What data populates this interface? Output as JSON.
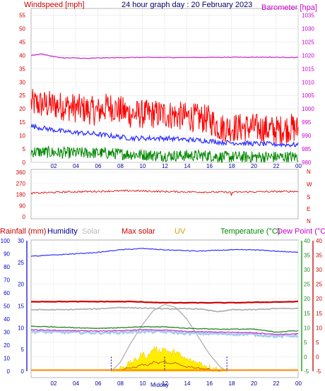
{
  "header": {
    "left_title": "Windspeed [mph]",
    "center_title": "24 hour graph day : 20 February 2023",
    "right_title": "Barometer [hpa]"
  },
  "colors": {
    "wind_axis": "#cc0000",
    "baro_axis": "#cc00cc",
    "gust": "#ff0000",
    "avg_wind": "#3333ff",
    "min_wind": "#008800",
    "barometer": "#cc33cc",
    "direction": "#dd2222",
    "rain_axis": "#0000cc",
    "humidity": "#3333ff",
    "solar": "#aaaaaa",
    "max_solar": "#aaaaaa",
    "uv": "#ddaa00",
    "temperature": "#228822",
    "dew_point": "#cc33cc",
    "temp_axis": "#cc0000",
    "outdoor_light": "#aaccee",
    "solar_fill": "#ffee00"
  },
  "legend2": {
    "rainfall": "Rainfall (mm)",
    "humidity": "Humidity",
    "solar": "Solar",
    "max_solar": "Max solar",
    "uv": "UV",
    "temperature": "Temperature (°C)",
    "dew_point": "Dew Point (°C)"
  },
  "midday_label": "Midday",
  "chart_data": [
    {
      "type": "line",
      "name": "wind-barometer",
      "x_ticks": [
        "02",
        "04",
        "06",
        "08",
        "10",
        "12",
        "14",
        "16",
        "18",
        "20",
        "22",
        "00"
      ],
      "y_left_ticks": [
        0,
        5,
        10,
        15,
        20,
        25,
        30,
        35,
        40,
        45,
        50,
        55
      ],
      "y_left_range": [
        0,
        57.5
      ],
      "y_right_ticks": [
        980,
        985,
        990,
        995,
        1000,
        1005,
        1010,
        1015,
        1020,
        1025,
        1030,
        1035
      ],
      "y_right_range": [
        980,
        1037.5
      ],
      "gust_profile": {
        "x": [
          0,
          3,
          6,
          7,
          9,
          12,
          16,
          17,
          20,
          22,
          23.5,
          24
        ],
        "y": [
          22,
          21,
          19,
          21,
          18,
          18,
          16,
          13,
          13,
          12,
          13,
          12
        ]
      },
      "avg_profile": {
        "x": [
          0,
          3,
          6,
          9,
          12,
          16,
          17,
          20,
          24
        ],
        "y": [
          13.5,
          11.5,
          10.5,
          9,
          9,
          8,
          7.5,
          7,
          6.5
        ]
      },
      "min_profile": {
        "x": [
          0,
          3,
          6,
          9,
          12,
          16,
          17,
          20,
          24
        ],
        "y": [
          4,
          3.5,
          3.5,
          3,
          2.5,
          2.5,
          2,
          2,
          2
        ]
      },
      "barometer": {
        "x": [
          0,
          1,
          2,
          3,
          4,
          5,
          6,
          9,
          12,
          15,
          18,
          21,
          24
        ],
        "y": [
          1020,
          1020.5,
          1019.5,
          1019,
          1019,
          1018.8,
          1019,
          1019.2,
          1019.2,
          1019.2,
          1019.3,
          1019.3,
          1019.2
        ]
      },
      "wind_grid": true
    },
    {
      "type": "line",
      "name": "wind-direction",
      "y_ticks": [
        0,
        90,
        180,
        270,
        360
      ],
      "y_range": [
        0,
        360
      ],
      "compass_labels": [
        "N",
        "W",
        "S",
        "E",
        "N"
      ],
      "direction": {
        "x": [
          0,
          3,
          6,
          9,
          12,
          15,
          18,
          21,
          24
        ],
        "y": [
          190,
          200,
          205,
          210,
          203,
          200,
          198,
          202,
          205
        ]
      }
    },
    {
      "type": "line",
      "name": "rain-humidity-solar-temperature",
      "x_ticks": [
        "02",
        "04",
        "06",
        "08",
        "10",
        "12",
        "14",
        "16",
        "18",
        "20",
        "22",
        "00"
      ],
      "y_left1_ticks": [
        0,
        10,
        20,
        30,
        40,
        50,
        60,
        70,
        80,
        90,
        100
      ],
      "y_left2_ticks": [
        0,
        5,
        10,
        15,
        20,
        25,
        30
      ],
      "y_right1_ticks": [
        -5,
        0,
        5,
        10,
        15,
        20,
        25,
        30,
        35,
        40
      ],
      "y_right2_ticks": [
        -5,
        0,
        5,
        10,
        15,
        20,
        25,
        30,
        35,
        40
      ],
      "humidity": {
        "x": [
          0,
          2,
          4,
          6,
          8,
          10,
          12,
          15,
          18,
          20,
          22,
          24
        ],
        "y": [
          88,
          89,
          90,
          91,
          93,
          94,
          93,
          92,
          93,
          93,
          92,
          91
        ]
      },
      "max_solar_level": {
        "x": [
          0,
          6,
          9,
          12,
          15,
          18,
          21,
          24
        ],
        "y": [
          19,
          19,
          19,
          18.6,
          18.6,
          18.6,
          18.8,
          19
        ]
      },
      "solar_level": {
        "x": [
          0,
          3,
          6,
          8,
          12,
          15,
          17,
          18,
          20,
          22,
          24
        ],
        "y": [
          16.2,
          16.2,
          16.5,
          17,
          16.5,
          16.5,
          15.5,
          16.2,
          16.2,
          16.6,
          16.6
        ]
      },
      "temperature": {
        "x": [
          0,
          2,
          4,
          6,
          8,
          10,
          12,
          14,
          17,
          20,
          22,
          24
        ],
        "y": [
          10.5,
          10.3,
          10,
          9.8,
          10,
          10.3,
          10.3,
          9.8,
          9.5,
          9.5,
          8.5,
          9
        ]
      },
      "dew_point": {
        "x": [
          0,
          2,
          4,
          6,
          8,
          10,
          12,
          14,
          17,
          20,
          22,
          24
        ],
        "y": [
          9.3,
          9.1,
          9,
          8.9,
          9,
          9.3,
          9.2,
          8.7,
          8.5,
          8.3,
          7.7,
          7.9
        ]
      },
      "max_solar_curve": {
        "x": [
          7.2,
          8,
          9,
          10,
          11,
          12,
          13,
          14,
          15,
          16,
          17,
          17.6
        ],
        "y": [
          0,
          3,
          10,
          16,
          21,
          23,
          22,
          18,
          12,
          6,
          1.5,
          0
        ]
      },
      "solar_fill": {
        "x": [
          7.2,
          8,
          8.5,
          9,
          9.5,
          10,
          10.5,
          11,
          11.5,
          12,
          12.5,
          13,
          13.5,
          14,
          15,
          16,
          17,
          17.6
        ],
        "y": [
          0,
          1,
          2,
          3,
          4,
          6,
          5,
          8,
          7,
          8,
          6,
          7,
          5,
          4,
          3,
          1.5,
          0.5,
          0
        ]
      },
      "uv_baseline": 0.3,
      "daylight_markers_hours": [
        7.2,
        12.0,
        17.6
      ]
    }
  ]
}
